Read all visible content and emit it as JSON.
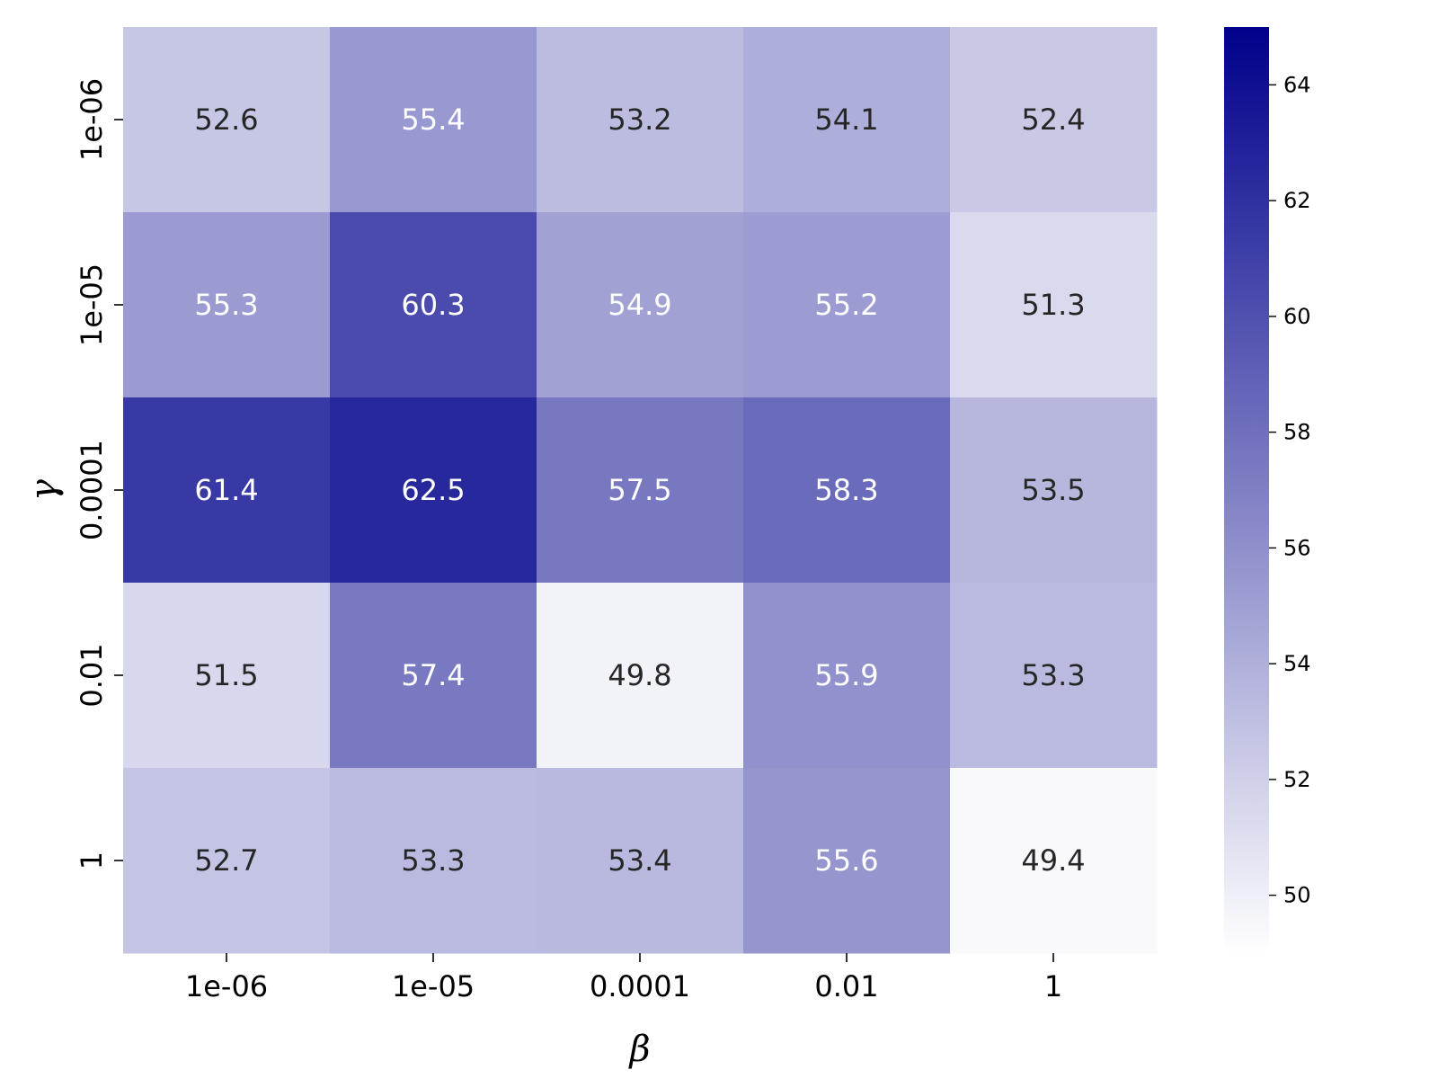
{
  "chart_data": {
    "type": "heatmap",
    "title": "",
    "xlabel": "β",
    "ylabel": "γ",
    "x_categories": [
      "1e-06",
      "1e-05",
      "0.0001",
      "0.01",
      "1"
    ],
    "y_categories": [
      "1e-06",
      "1e-05",
      "0.0001",
      "0.01",
      "1"
    ],
    "values": [
      [
        52.6,
        55.4,
        53.2,
        54.1,
        52.4
      ],
      [
        55.3,
        60.3,
        54.9,
        55.2,
        51.3
      ],
      [
        61.4,
        62.5,
        57.5,
        58.3,
        53.5
      ],
      [
        51.5,
        57.4,
        49.8,
        55.9,
        53.3
      ],
      [
        52.7,
        53.3,
        53.4,
        55.6,
        49.4
      ]
    ],
    "colorbar": {
      "min": 49.0,
      "max": 65.0,
      "ticks": [
        50,
        52,
        54,
        56,
        58,
        60,
        62,
        64
      ],
      "color_low": "#ffffff",
      "color_high": "#00008b"
    },
    "label_light_color": "#ffffff",
    "label_dark_color": "#262626"
  }
}
